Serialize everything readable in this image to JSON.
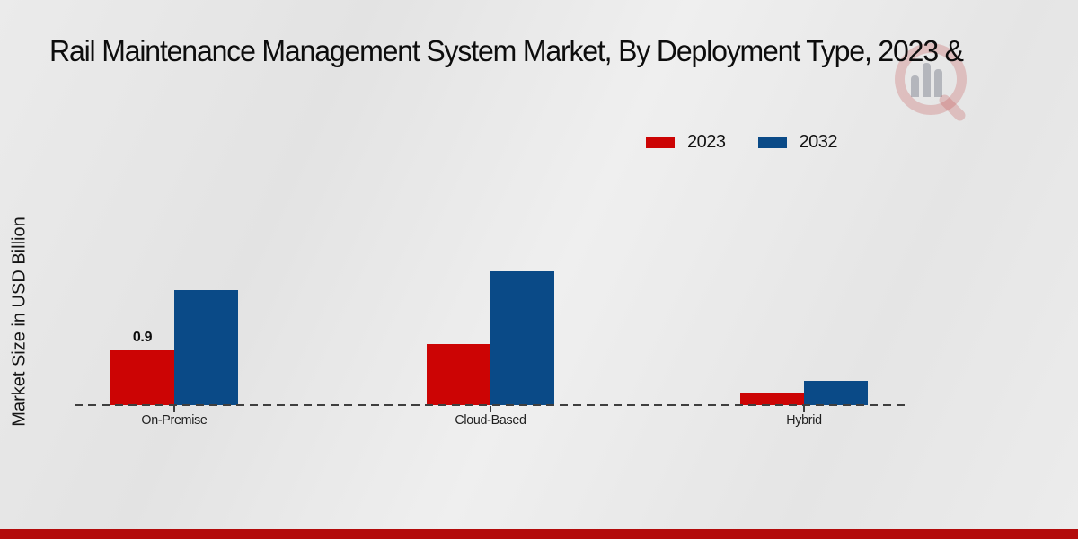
{
  "chart_data": {
    "type": "bar",
    "title": "Rail Maintenance Management System Market, By Deployment Type, 2023 &",
    "ylabel": "Market Size in USD Billion",
    "xlabel": "",
    "categories": [
      "On-Premise",
      "Cloud-Based",
      "Hybrid"
    ],
    "series": [
      {
        "name": "2023",
        "color": "#cc0404",
        "values": [
          0.9,
          1.0,
          0.2
        ],
        "data_labels": [
          "0.9",
          "",
          ""
        ]
      },
      {
        "name": "2032",
        "color": "#0a4a87",
        "values": [
          1.9,
          2.2,
          0.4
        ],
        "data_labels": [
          "",
          "",
          ""
        ]
      }
    ],
    "ylim": [
      0,
      2.6
    ],
    "grid": false,
    "legend_position": "top-right",
    "baseline_style": "dashed"
  },
  "branding": {
    "watermark_icon": "magnifier-bar-chart-logo",
    "footer_strip_color": "#b30b0b"
  }
}
